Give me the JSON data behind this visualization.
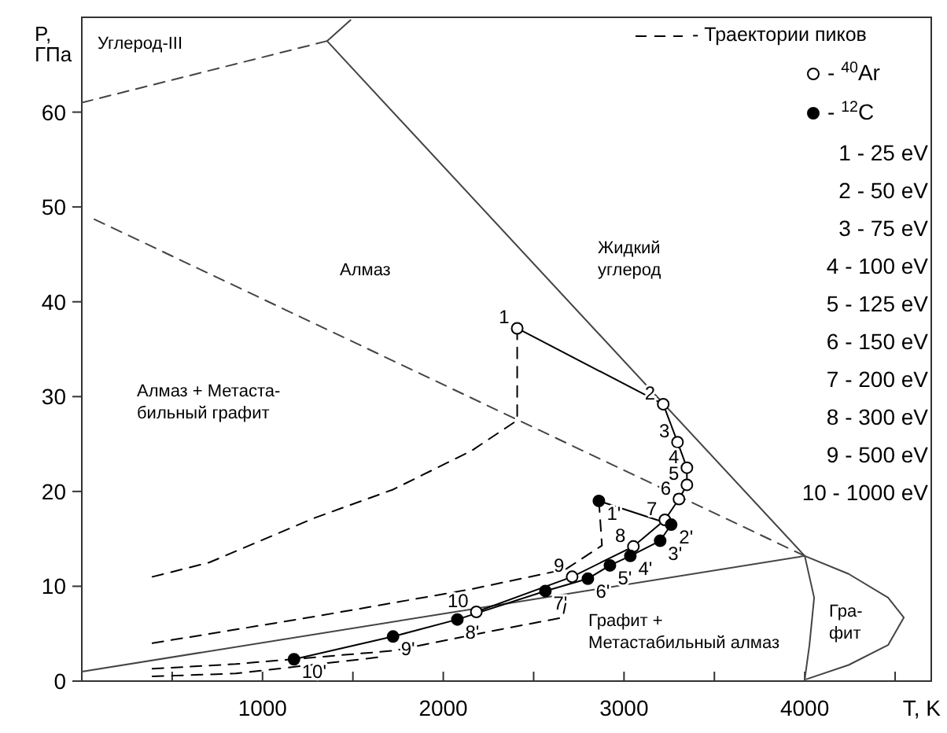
{
  "chart_data": {
    "type": "line",
    "xlabel": "T, K",
    "ylabel": "P,\nГПа",
    "xlim": [
      0,
      4700
    ],
    "ylim": [
      0,
      70
    ],
    "xticks": [
      {
        "value": 500,
        "label": null
      },
      1000,
      {
        "value": 1500,
        "label": null
      },
      2000,
      {
        "value": 2500,
        "label": null
      },
      3000,
      {
        "value": 3500,
        "label": null
      },
      4000,
      {
        "value": 4500,
        "label": null
      }
    ],
    "yticks": [
      0,
      10,
      20,
      30,
      40,
      50,
      60
    ],
    "grid": false,
    "legend": "top right",
    "series": [
      {
        "color": "#444444",
        "x": [
          1487,
          1357,
          4000
        ],
        "values": [
          69.7,
          67.5,
          13.2
        ]
      },
      {
        "color": "#444444",
        "x": [
          0,
          4000
        ],
        "values": [
          1.0,
          13.2
        ]
      },
      {
        "color": "#444444",
        "x": [
          4009,
          4243,
          4461,
          4548,
          4461,
          4243,
          4000,
          4052,
          4026,
          4000
        ],
        "values": [
          0.2,
          1.7,
          3.8,
          6.7,
          8.8,
          11.3,
          13.2,
          8.8,
          3.8,
          0.2
        ]
      },
      {
        "color": "#444444",
        "line_style": "dashed",
        "x": [
          0,
          1357
        ],
        "values": [
          61.0,
          67.5
        ]
      },
      {
        "color": "#444444",
        "line_style": "dashed",
        "x": [
          70,
          4000
        ],
        "values": [
          48.7,
          13.2
        ]
      },
      {
        "name": "- Траектории пиков",
        "color": "#000000",
        "line_style": "dashed",
        "x": [
          2409,
          2409,
          2157,
          1722,
          1287,
          704,
          391
        ],
        "values": [
          37.2,
          27.5,
          24.3,
          20.2,
          17.2,
          12.5,
          11.0
        ]
      },
      {
        "color": "#000000",
        "line_style": "dashed",
        "x": [
          2861,
          2878,
          2678,
          2157,
          1287,
          391
        ],
        "values": [
          19.0,
          14.3,
          11.8,
          9.7,
          6.8,
          4.0
        ]
      },
      {
        "color": "#000000",
        "line_style": "dashed",
        "x": [
          2678,
          2661,
          2330,
          1722,
          852,
          391
        ],
        "values": [
          8.3,
          6.7,
          5.5,
          3.2,
          1.8,
          1.3
        ]
      },
      {
        "color": "#000000",
        "line_style": "dashed",
        "x": [
          1635,
          852,
          391
        ],
        "values": [
          2.5,
          0.8,
          0.5
        ]
      },
      {
        "color": "#000000",
        "x": [
          2409,
          3217,
          3296,
          3348,
          3348,
          3304,
          3226,
          3052,
          2713,
          2183
        ],
        "values": [
          37.2,
          29.2,
          25.2,
          22.5,
          20.7,
          19.2,
          17.0,
          14.2,
          11.0,
          7.3
        ]
      },
      {
        "color": "#000000",
        "x": [
          2861,
          3261,
          3200,
          3035,
          2922,
          2800,
          2565,
          2078,
          1722,
          1174
        ],
        "values": [
          19.0,
          16.5,
          14.8,
          13.2,
          12.2,
          10.8,
          9.5,
          6.5,
          4.7,
          2.3
        ]
      },
      {
        "type": "scatter",
        "name": "- $^{40}$Ar",
        "color": "#ffffff",
        "marker": "circle",
        "x": [
          2409,
          3217,
          3296,
          3348,
          3348,
          3304,
          3226,
          3052,
          2713,
          2183
        ],
        "values": [
          37.2,
          29.2,
          25.2,
          22.5,
          20.7,
          19.2,
          17.0,
          14.2,
          11.0,
          7.3
        ]
      },
      {
        "type": "scatter",
        "name": "- $^{12}$C",
        "color": "#000000",
        "marker": "circle",
        "x": [
          2861,
          3261,
          3200,
          3035,
          2922,
          2800,
          2565,
          2078,
          1722,
          1174
        ],
        "values": [
          19.0,
          16.5,
          14.8,
          13.2,
          12.2,
          10.8,
          9.5,
          6.5,
          4.7,
          2.3
        ]
      }
    ],
    "annotations": [
      "Углерод-III",
      "Алмаз",
      "Жидкий\nуглерод",
      "Алмаз + Метаста-\nбильный графит",
      "Графит +\nМетастабильный алмаз",
      "Гра-\nфит",
      "1  -  25 eV",
      "2  - 50 eV",
      "3  - 75 eV",
      "4 - 100 eV",
      "5 - 125 eV",
      "6 - 150 eV",
      "7 - 200 eV",
      "8 - 300 eV",
      "9 - 500 eV",
      "10 - 1000 eV",
      {
        "text": "1",
        "x": 2409,
        "y": 37.2
      },
      {
        "text": "2",
        "x": 3217,
        "y": 29.2
      },
      {
        "text": "3",
        "x": 3296,
        "y": 25.2
      },
      {
        "text": "4",
        "x": 3348,
        "y": 22.5
      },
      {
        "text": "5",
        "x": 3348,
        "y": 20.7
      },
      {
        "text": "6",
        "x": 3304,
        "y": 19.2
      },
      {
        "text": "7",
        "x": 3226,
        "y": 17.0
      },
      {
        "text": "8",
        "x": 3052,
        "y": 14.2
      },
      {
        "text": "9",
        "x": 2713,
        "y": 11.0
      },
      {
        "text": "10",
        "x": 2183,
        "y": 7.3
      },
      {
        "text": "1'",
        "x": 2861,
        "y": 19.0
      },
      {
        "text": "2'",
        "x": 3261,
        "y": 16.5
      },
      {
        "text": "3'",
        "x": 3200,
        "y": 14.8
      },
      {
        "text": "4'",
        "x": 3035,
        "y": 13.2
      },
      {
        "text": "5'",
        "x": 2922,
        "y": 12.2
      },
      {
        "text": "6'",
        "x": 2800,
        "y": 10.8
      },
      {
        "text": "7'",
        "x": 2565,
        "y": 9.5
      },
      {
        "text": "8'",
        "x": 2078,
        "y": 6.5
      },
      {
        "text": "9'",
        "x": 1722,
        "y": 4.7
      },
      {
        "text": "10'",
        "x": 1174,
        "y": 2.3
      }
    ]
  }
}
